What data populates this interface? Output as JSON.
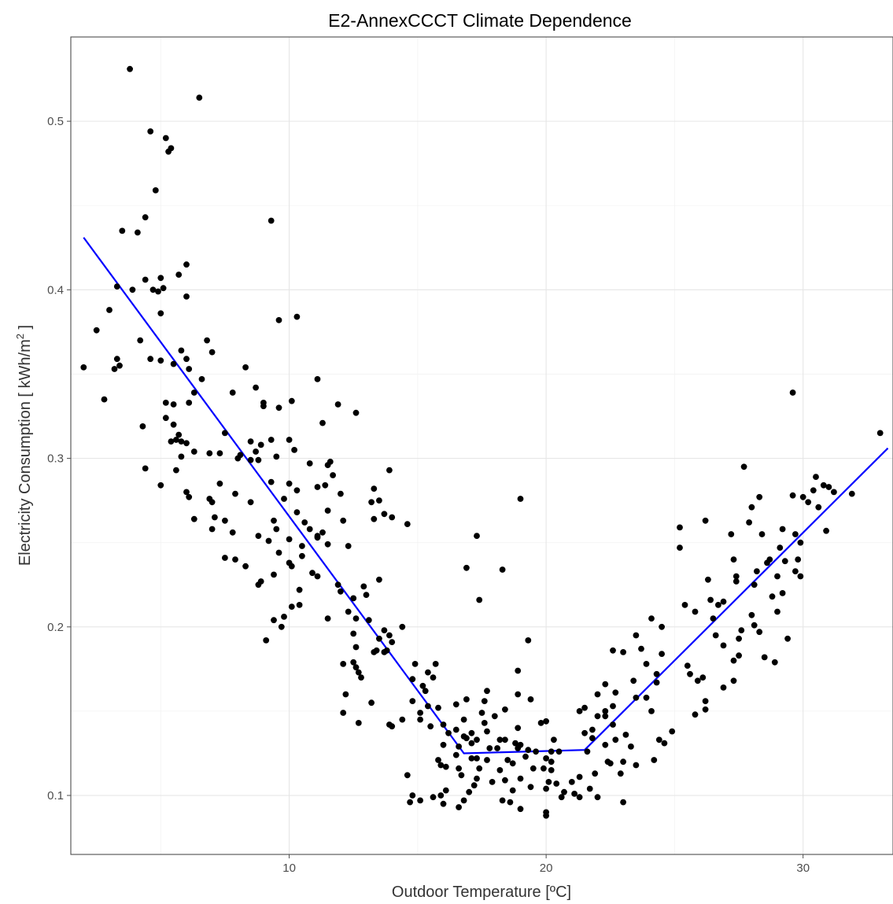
{
  "chart_data": {
    "type": "scatter",
    "title": "E2-AnnexCCCT Climate Dependence",
    "xlabel": "Outdoor Temperature [ºC]",
    "ylabel_main": "Electricity Consumption  [ kWh/m",
    "ylabel_sup": "2",
    "ylabel_end": " ]",
    "xlim": [
      1.5,
      33.5
    ],
    "ylim": [
      0.065,
      0.55
    ],
    "x_ticks": [
      10,
      20,
      30
    ],
    "x_tick_labels": [
      "10",
      "20",
      "30"
    ],
    "y_ticks": [
      0.1,
      0.2,
      0.3,
      0.4,
      0.5
    ],
    "y_tick_labels": [
      "0.1",
      "0.2",
      "0.3",
      "0.4",
      "0.5"
    ],
    "grid": true,
    "points_color": "#000000",
    "fit_color": "#0000ff",
    "fit_line": [
      [
        2.0,
        0.431
      ],
      [
        16.8,
        0.125
      ],
      [
        21.5,
        0.127
      ],
      [
        33.3,
        0.306
      ]
    ],
    "points": [
      [
        3.8,
        0.531
      ],
      [
        6.5,
        0.514
      ],
      [
        4.6,
        0.494
      ],
      [
        5.2,
        0.49
      ],
      [
        5.3,
        0.482
      ],
      [
        5.4,
        0.484
      ],
      [
        4.8,
        0.459
      ],
      [
        4.4,
        0.443
      ],
      [
        9.3,
        0.441
      ],
      [
        3.5,
        0.435
      ],
      [
        4.1,
        0.434
      ],
      [
        6.0,
        0.415
      ],
      [
        5.7,
        0.409
      ],
      [
        5.0,
        0.407
      ],
      [
        4.4,
        0.406
      ],
      [
        3.3,
        0.402
      ],
      [
        3.9,
        0.4
      ],
      [
        4.7,
        0.4
      ],
      [
        5.1,
        0.401
      ],
      [
        4.9,
        0.399
      ],
      [
        6.0,
        0.396
      ],
      [
        3.0,
        0.388
      ],
      [
        5.0,
        0.386
      ],
      [
        10.3,
        0.384
      ],
      [
        9.6,
        0.382
      ],
      [
        2.5,
        0.376
      ],
      [
        4.2,
        0.37
      ],
      [
        6.8,
        0.37
      ],
      [
        5.8,
        0.364
      ],
      [
        7.0,
        0.363
      ],
      [
        6.0,
        0.359
      ],
      [
        3.3,
        0.359
      ],
      [
        4.6,
        0.359
      ],
      [
        5.0,
        0.358
      ],
      [
        5.5,
        0.356
      ],
      [
        3.4,
        0.355
      ],
      [
        2.0,
        0.354
      ],
      [
        6.1,
        0.353
      ],
      [
        8.3,
        0.354
      ],
      [
        3.2,
        0.353
      ],
      [
        6.6,
        0.347
      ],
      [
        11.1,
        0.347
      ],
      [
        8.7,
        0.342
      ],
      [
        6.3,
        0.339
      ],
      [
        7.8,
        0.339
      ],
      [
        2.8,
        0.335
      ],
      [
        10.1,
        0.334
      ],
      [
        5.2,
        0.333
      ],
      [
        6.1,
        0.333
      ],
      [
        5.5,
        0.332
      ],
      [
        9.0,
        0.333
      ],
      [
        9.0,
        0.331
      ],
      [
        9.6,
        0.33
      ],
      [
        11.9,
        0.332
      ],
      [
        12.6,
        0.327
      ],
      [
        5.2,
        0.324
      ],
      [
        5.5,
        0.32
      ],
      [
        11.3,
        0.321
      ],
      [
        4.3,
        0.319
      ],
      [
        5.7,
        0.314
      ],
      [
        7.5,
        0.315
      ],
      [
        5.6,
        0.311
      ],
      [
        5.4,
        0.31
      ],
      [
        5.8,
        0.31
      ],
      [
        6.0,
        0.309
      ],
      [
        9.3,
        0.311
      ],
      [
        10.0,
        0.311
      ],
      [
        8.5,
        0.31
      ],
      [
        8.9,
        0.308
      ],
      [
        8.7,
        0.304
      ],
      [
        6.3,
        0.304
      ],
      [
        10.2,
        0.305
      ],
      [
        6.9,
        0.303
      ],
      [
        7.3,
        0.303
      ],
      [
        8.1,
        0.302
      ],
      [
        8.5,
        0.299
      ],
      [
        8.8,
        0.299
      ],
      [
        5.8,
        0.301
      ],
      [
        8.0,
        0.3
      ],
      [
        9.5,
        0.301
      ],
      [
        10.8,
        0.297
      ],
      [
        11.6,
        0.298
      ],
      [
        11.5,
        0.296
      ],
      [
        13.9,
        0.293
      ],
      [
        4.4,
        0.294
      ],
      [
        5.6,
        0.293
      ],
      [
        11.7,
        0.29
      ],
      [
        10.0,
        0.285
      ],
      [
        7.3,
        0.285
      ],
      [
        9.3,
        0.286
      ],
      [
        5.0,
        0.284
      ],
      [
        11.1,
        0.283
      ],
      [
        11.4,
        0.284
      ],
      [
        13.3,
        0.282
      ],
      [
        6.0,
        0.28
      ],
      [
        7.9,
        0.279
      ],
      [
        10.3,
        0.281
      ],
      [
        12.0,
        0.279
      ],
      [
        6.1,
        0.277
      ],
      [
        6.9,
        0.276
      ],
      [
        7.0,
        0.274
      ],
      [
        13.5,
        0.275
      ],
      [
        13.2,
        0.274
      ],
      [
        8.5,
        0.274
      ],
      [
        9.8,
        0.276
      ],
      [
        11.5,
        0.269
      ],
      [
        10.3,
        0.268
      ],
      [
        13.7,
        0.267
      ],
      [
        7.1,
        0.265
      ],
      [
        6.3,
        0.264
      ],
      [
        7.5,
        0.263
      ],
      [
        9.4,
        0.263
      ],
      [
        12.1,
        0.263
      ],
      [
        10.6,
        0.262
      ],
      [
        13.3,
        0.264
      ],
      [
        14.0,
        0.265
      ],
      [
        14.6,
        0.261
      ],
      [
        7.0,
        0.258
      ],
      [
        7.8,
        0.256
      ],
      [
        9.5,
        0.258
      ],
      [
        10.8,
        0.258
      ],
      [
        11.3,
        0.256
      ],
      [
        11.1,
        0.254
      ],
      [
        8.8,
        0.254
      ],
      [
        10.0,
        0.252
      ],
      [
        11.1,
        0.253
      ],
      [
        9.2,
        0.251
      ],
      [
        10.5,
        0.248
      ],
      [
        11.5,
        0.249
      ],
      [
        12.3,
        0.248
      ],
      [
        9.6,
        0.244
      ],
      [
        10.5,
        0.242
      ],
      [
        7.5,
        0.241
      ],
      [
        7.9,
        0.24
      ],
      [
        10.0,
        0.238
      ],
      [
        10.1,
        0.236
      ],
      [
        8.3,
        0.236
      ],
      [
        10.9,
        0.232
      ],
      [
        9.4,
        0.231
      ],
      [
        11.1,
        0.23
      ],
      [
        8.9,
        0.227
      ],
      [
        8.8,
        0.225
      ],
      [
        12.9,
        0.224
      ],
      [
        11.9,
        0.225
      ],
      [
        13.5,
        0.228
      ],
      [
        10.4,
        0.222
      ],
      [
        12.0,
        0.221
      ],
      [
        13.0,
        0.219
      ],
      [
        12.5,
        0.217
      ],
      [
        10.4,
        0.213
      ],
      [
        10.1,
        0.212
      ],
      [
        12.3,
        0.209
      ],
      [
        11.5,
        0.205
      ],
      [
        12.6,
        0.205
      ],
      [
        9.8,
        0.206
      ],
      [
        9.4,
        0.204
      ],
      [
        13.1,
        0.204
      ],
      [
        13.7,
        0.198
      ],
      [
        9.7,
        0.2
      ],
      [
        12.5,
        0.196
      ],
      [
        14.4,
        0.2
      ],
      [
        13.9,
        0.195
      ],
      [
        14.0,
        0.191
      ],
      [
        13.5,
        0.193
      ],
      [
        9.1,
        0.192
      ],
      [
        12.6,
        0.188
      ],
      [
        13.4,
        0.186
      ],
      [
        13.3,
        0.185
      ],
      [
        13.7,
        0.185
      ],
      [
        13.8,
        0.186
      ],
      [
        12.5,
        0.179
      ],
      [
        12.1,
        0.178
      ],
      [
        12.6,
        0.176
      ],
      [
        14.9,
        0.178
      ],
      [
        15.7,
        0.178
      ],
      [
        12.7,
        0.173
      ],
      [
        12.8,
        0.17
      ],
      [
        15.4,
        0.173
      ],
      [
        14.8,
        0.169
      ],
      [
        15.6,
        0.17
      ],
      [
        15.2,
        0.165
      ],
      [
        12.2,
        0.16
      ],
      [
        15.3,
        0.162
      ],
      [
        17.7,
        0.162
      ],
      [
        18.9,
        0.16
      ],
      [
        13.2,
        0.155
      ],
      [
        14.8,
        0.156
      ],
      [
        16.9,
        0.157
      ],
      [
        17.6,
        0.156
      ],
      [
        19.4,
        0.157
      ],
      [
        15.4,
        0.153
      ],
      [
        15.8,
        0.152
      ],
      [
        16.5,
        0.154
      ],
      [
        18.4,
        0.151
      ],
      [
        15.1,
        0.149
      ],
      [
        17.5,
        0.149
      ],
      [
        12.1,
        0.149
      ],
      [
        12.7,
        0.143
      ],
      [
        15.1,
        0.145
      ],
      [
        16.8,
        0.145
      ],
      [
        18.0,
        0.147
      ],
      [
        14.4,
        0.145
      ],
      [
        17.6,
        0.143
      ],
      [
        13.9,
        0.142
      ],
      [
        14.0,
        0.141
      ],
      [
        15.5,
        0.141
      ],
      [
        16.0,
        0.142
      ],
      [
        16.5,
        0.139
      ],
      [
        17.1,
        0.137
      ],
      [
        17.7,
        0.138
      ],
      [
        18.9,
        0.14
      ],
      [
        19.8,
        0.143
      ],
      [
        20.0,
        0.144
      ],
      [
        16.2,
        0.137
      ],
      [
        16.8,
        0.135
      ],
      [
        16.9,
        0.134
      ],
      [
        17.1,
        0.131
      ],
      [
        17.3,
        0.133
      ],
      [
        18.2,
        0.133
      ],
      [
        18.4,
        0.133
      ],
      [
        18.8,
        0.131
      ],
      [
        19.0,
        0.13
      ],
      [
        20.3,
        0.133
      ],
      [
        16.0,
        0.13
      ],
      [
        16.6,
        0.129
      ],
      [
        17.8,
        0.128
      ],
      [
        18.1,
        0.128
      ],
      [
        18.9,
        0.128
      ],
      [
        19.3,
        0.127
      ],
      [
        19.6,
        0.126
      ],
      [
        20.2,
        0.126
      ],
      [
        20.5,
        0.126
      ],
      [
        16.5,
        0.124
      ],
      [
        17.1,
        0.122
      ],
      [
        17.3,
        0.122
      ],
      [
        17.7,
        0.121
      ],
      [
        18.5,
        0.121
      ],
      [
        18.7,
        0.119
      ],
      [
        19.2,
        0.123
      ],
      [
        20.0,
        0.122
      ],
      [
        20.2,
        0.12
      ],
      [
        15.8,
        0.121
      ],
      [
        15.9,
        0.118
      ],
      [
        16.1,
        0.117
      ],
      [
        16.6,
        0.116
      ],
      [
        17.4,
        0.116
      ],
      [
        18.2,
        0.115
      ],
      [
        19.5,
        0.116
      ],
      [
        19.9,
        0.116
      ],
      [
        20.2,
        0.115
      ],
      [
        14.6,
        0.112
      ],
      [
        16.7,
        0.112
      ],
      [
        17.3,
        0.11
      ],
      [
        17.9,
        0.108
      ],
      [
        18.4,
        0.109
      ],
      [
        19.0,
        0.11
      ],
      [
        20.1,
        0.108
      ],
      [
        20.4,
        0.107
      ],
      [
        17.2,
        0.106
      ],
      [
        16.1,
        0.103
      ],
      [
        17.0,
        0.102
      ],
      [
        18.7,
        0.103
      ],
      [
        19.4,
        0.105
      ],
      [
        20.0,
        0.104
      ],
      [
        20.7,
        0.102
      ],
      [
        21.1,
        0.101
      ],
      [
        15.9,
        0.1
      ],
      [
        14.8,
        0.1
      ],
      [
        15.6,
        0.099
      ],
      [
        15.1,
        0.097
      ],
      [
        16.8,
        0.097
      ],
      [
        14.7,
        0.096
      ],
      [
        16.0,
        0.095
      ],
      [
        18.3,
        0.097
      ],
      [
        18.6,
        0.096
      ],
      [
        16.6,
        0.093
      ],
      [
        20.0,
        0.09
      ],
      [
        20.0,
        0.088
      ],
      [
        19.0,
        0.092
      ],
      [
        19.0,
        0.276
      ],
      [
        17.3,
        0.254
      ],
      [
        16.9,
        0.235
      ],
      [
        17.4,
        0.216
      ],
      [
        18.3,
        0.234
      ],
      [
        19.3,
        0.192
      ],
      [
        18.9,
        0.174
      ],
      [
        21.3,
        0.15
      ],
      [
        21.5,
        0.152
      ],
      [
        21.5,
        0.137
      ],
      [
        21.8,
        0.134
      ],
      [
        21.6,
        0.126
      ],
      [
        21.8,
        0.139
      ],
      [
        22.0,
        0.147
      ],
      [
        22.3,
        0.15
      ],
      [
        22.0,
        0.16
      ],
      [
        22.6,
        0.153
      ],
      [
        22.3,
        0.147
      ],
      [
        22.6,
        0.142
      ],
      [
        22.7,
        0.133
      ],
      [
        22.3,
        0.13
      ],
      [
        22.4,
        0.12
      ],
      [
        22.5,
        0.119
      ],
      [
        23.0,
        0.12
      ],
      [
        22.9,
        0.113
      ],
      [
        21.9,
        0.113
      ],
      [
        21.3,
        0.111
      ],
      [
        21.0,
        0.108
      ],
      [
        21.7,
        0.104
      ],
      [
        21.3,
        0.099
      ],
      [
        20.6,
        0.099
      ],
      [
        22.0,
        0.099
      ],
      [
        23.0,
        0.096
      ],
      [
        22.6,
        0.186
      ],
      [
        23.0,
        0.185
      ],
      [
        23.7,
        0.187
      ],
      [
        23.4,
        0.168
      ],
      [
        23.5,
        0.158
      ],
      [
        23.9,
        0.158
      ],
      [
        24.1,
        0.15
      ],
      [
        23.5,
        0.195
      ],
      [
        23.9,
        0.178
      ],
      [
        24.1,
        0.205
      ],
      [
        24.5,
        0.2
      ],
      [
        24.5,
        0.184
      ],
      [
        24.3,
        0.172
      ],
      [
        24.3,
        0.167
      ],
      [
        22.7,
        0.161
      ],
      [
        22.3,
        0.166
      ],
      [
        23.1,
        0.136
      ],
      [
        23.3,
        0.129
      ],
      [
        24.2,
        0.121
      ],
      [
        24.4,
        0.133
      ],
      [
        24.9,
        0.138
      ],
      [
        23.5,
        0.118
      ],
      [
        24.6,
        0.131
      ],
      [
        25.2,
        0.259
      ],
      [
        25.2,
        0.247
      ],
      [
        25.4,
        0.213
      ],
      [
        25.8,
        0.209
      ],
      [
        25.5,
        0.177
      ],
      [
        25.6,
        0.172
      ],
      [
        25.9,
        0.168
      ],
      [
        25.8,
        0.148
      ],
      [
        26.1,
        0.17
      ],
      [
        26.2,
        0.156
      ],
      [
        26.2,
        0.151
      ],
      [
        26.2,
        0.263
      ],
      [
        26.7,
        0.213
      ],
      [
        26.5,
        0.205
      ],
      [
        26.4,
        0.216
      ],
      [
        26.9,
        0.189
      ],
      [
        26.9,
        0.164
      ],
      [
        27.2,
        0.255
      ],
      [
        27.3,
        0.24
      ],
      [
        27.4,
        0.227
      ],
      [
        27.4,
        0.23
      ],
      [
        27.6,
        0.198
      ],
      [
        27.5,
        0.193
      ],
      [
        27.3,
        0.18
      ],
      [
        27.5,
        0.183
      ],
      [
        27.7,
        0.295
      ],
      [
        28.0,
        0.271
      ],
      [
        28.3,
        0.277
      ],
      [
        28.4,
        0.255
      ],
      [
        28.7,
        0.24
      ],
      [
        28.6,
        0.238
      ],
      [
        28.2,
        0.233
      ],
      [
        28.1,
        0.225
      ],
      [
        28.0,
        0.207
      ],
      [
        28.1,
        0.201
      ],
      [
        28.3,
        0.197
      ],
      [
        28.5,
        0.182
      ],
      [
        28.9,
        0.179
      ],
      [
        29.2,
        0.258
      ],
      [
        29.1,
        0.247
      ],
      [
        29.3,
        0.239
      ],
      [
        29.0,
        0.23
      ],
      [
        29.2,
        0.22
      ],
      [
        29.0,
        0.209
      ],
      [
        29.4,
        0.193
      ],
      [
        29.6,
        0.278
      ],
      [
        29.7,
        0.255
      ],
      [
        29.9,
        0.25
      ],
      [
        29.8,
        0.24
      ],
      [
        29.7,
        0.233
      ],
      [
        29.9,
        0.23
      ],
      [
        29.6,
        0.339
      ],
      [
        30.0,
        0.277
      ],
      [
        30.2,
        0.274
      ],
      [
        30.4,
        0.281
      ],
      [
        30.5,
        0.289
      ],
      [
        30.6,
        0.271
      ],
      [
        30.8,
        0.284
      ],
      [
        30.9,
        0.257
      ],
      [
        31.0,
        0.283
      ],
      [
        31.2,
        0.28
      ],
      [
        31.9,
        0.279
      ],
      [
        33.0,
        0.315
      ],
      [
        26.9,
        0.215
      ],
      [
        26.6,
        0.195
      ],
      [
        27.3,
        0.168
      ],
      [
        28.8,
        0.218
      ],
      [
        27.9,
        0.262
      ],
      [
        26.3,
        0.228
      ]
    ]
  }
}
